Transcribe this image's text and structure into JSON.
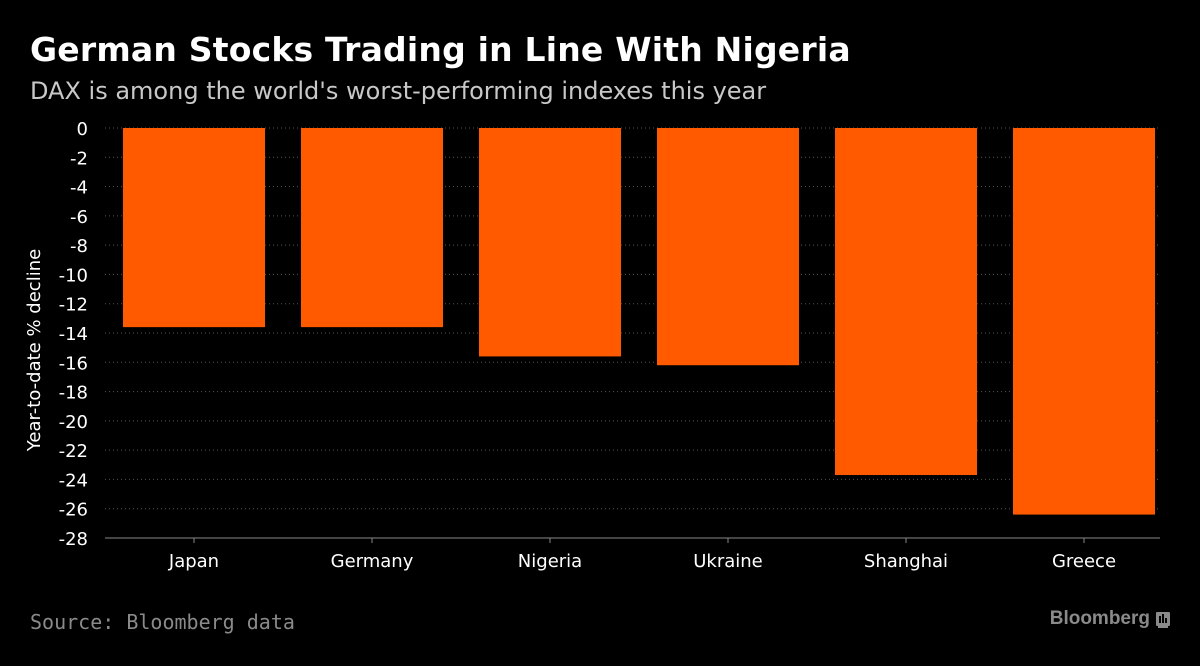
{
  "title": "German Stocks Trading in Line With Nigeria",
  "subtitle": "DAX is among the world's worst-performing indexes this year",
  "source": "Source: Bloomberg data",
  "brand": "Bloomberg",
  "colors": {
    "background": "#000000",
    "bar": "#ff5a00",
    "grid": "#555555",
    "axis_text": "#ffffff",
    "muted_text": "#8a8a8a"
  },
  "chart_data": {
    "type": "bar",
    "categories": [
      "Japan",
      "Germany",
      "Nigeria",
      "Ukraine",
      "Shanghai",
      "Greece"
    ],
    "values": [
      -13.6,
      -13.6,
      -15.6,
      -16.2,
      -23.7,
      -26.4
    ],
    "ylabel": "Year-to-date % decline",
    "xlabel": "",
    "ylim": [
      -28,
      0
    ],
    "yticks": [
      0,
      -2,
      -4,
      -6,
      -8,
      -10,
      -12,
      -14,
      -16,
      -18,
      -20,
      -22,
      -24,
      -26,
      -28
    ],
    "grid": true,
    "grid_style": "dotted horizontal"
  }
}
